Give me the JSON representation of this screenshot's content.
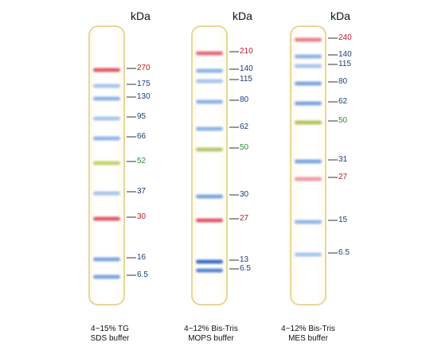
{
  "kda_label": "kDa",
  "ladders": [
    {
      "caption_line1": "4~15% TG",
      "caption_line2": "SDS buffer",
      "markers": [
        {
          "label": "270",
          "color": "#e05a6a"
        },
        {
          "label": "175",
          "color": "#a9c6ec"
        },
        {
          "label": "130",
          "color": "#8fb4e6"
        },
        {
          "label": "95",
          "color": "#a9c6ec"
        },
        {
          "label": "66",
          "color": "#93b7e6"
        },
        {
          "label": "52",
          "color": "#c4d36a"
        },
        {
          "label": "37",
          "color": "#a9c6ec"
        },
        {
          "label": "30",
          "color": "#e05a6a"
        },
        {
          "label": "16",
          "color": "#7ea6e0"
        },
        {
          "label": "6.5",
          "color": "#7ea6e0"
        }
      ]
    },
    {
      "caption_line1": "4~12% Bis-Tris",
      "caption_line2": "MOPS buffer",
      "markers": [
        {
          "label": "210",
          "color": "#e86c7c"
        },
        {
          "label": "140",
          "color": "#8fb4e6"
        },
        {
          "label": "115",
          "color": "#a9c6ec"
        },
        {
          "label": "80",
          "color": "#8fb4e6"
        },
        {
          "label": "62",
          "color": "#8fb4e6"
        },
        {
          "label": "50",
          "color": "#b8c86a"
        },
        {
          "label": "30",
          "color": "#7ea6e0"
        },
        {
          "label": "27",
          "color": "#e05a6a"
        },
        {
          "label": "13",
          "color": "#3f70c4"
        },
        {
          "label": "6.5",
          "color": "#5b88d2"
        }
      ]
    },
    {
      "caption_line1": "4~12% Bis-Tris",
      "caption_line2": "MES buffer",
      "markers": [
        {
          "label": "240",
          "color": "#ec7f8c"
        },
        {
          "label": "140",
          "color": "#8fb4e6"
        },
        {
          "label": "115",
          "color": "#a9c6ec"
        },
        {
          "label": "80",
          "color": "#7ea6e0"
        },
        {
          "label": "62",
          "color": "#7ea6e0"
        },
        {
          "label": "50",
          "color": "#b4c35e"
        },
        {
          "label": "31",
          "color": "#7ea6e0"
        },
        {
          "label": "27",
          "color": "#ef9aa6"
        },
        {
          "label": "15",
          "color": "#93b7e6"
        },
        {
          "label": "6.5",
          "color": "#a9c6ec"
        }
      ]
    }
  ]
}
